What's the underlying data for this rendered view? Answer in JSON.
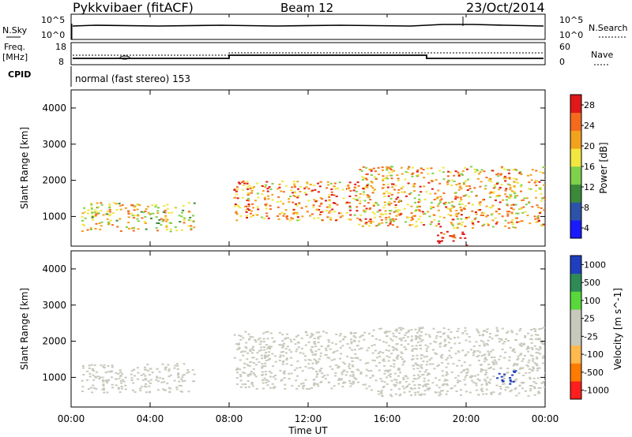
{
  "header": {
    "station": "Pykkvibaer (fitACF)",
    "beam": "Beam 12",
    "date": "23/Oct/2014"
  },
  "panels": {
    "nsky": {
      "label": "N.Sky",
      "right_label": "N.Search",
      "y_ticks_left": [
        "10^5",
        "10^0"
      ],
      "y_ticks_right": [
        "10^5",
        "10^0"
      ]
    },
    "freq": {
      "label_top": "Freq.",
      "label_unit": "[MHz]",
      "y_ticks_left": [
        "18",
        "8"
      ],
      "y_ticks_right": [
        "60",
        "0"
      ],
      "right_label": "Nave"
    },
    "cpid": {
      "label": "CPID",
      "text": "normal (fast stereo) 153"
    }
  },
  "colors": {
    "power_scale": [
      "#1a1aff",
      "#2d53a8",
      "#3a8a3a",
      "#7fd04a",
      "#f2e640",
      "#f2a21d",
      "#f56a1c",
      "#e01818"
    ],
    "velocity_scale": [
      "#ff1e1e",
      "#ff7a00",
      "#ffb84d",
      "#c8c8bc",
      "#c8c8bc",
      "#58d83a",
      "#2e8b57",
      "#1f3fbf"
    ]
  },
  "chart_data": [
    {
      "type": "heatmap",
      "title": "",
      "xlabel": "Time UT",
      "ylabel": "Slant Range [km]",
      "xlim": [
        0,
        24
      ],
      "ylim": [
        180,
        4500
      ],
      "x_ticks": [
        "00:00",
        "04:00",
        "08:00",
        "12:00",
        "16:00",
        "20:00",
        "00:00"
      ],
      "y_ticks": [
        "1000",
        "2000",
        "3000",
        "4000"
      ],
      "colorbar_label": "Power [dB]",
      "colorbar_ticks": [
        "28",
        "24",
        "20",
        "16",
        "12",
        "8",
        "4"
      ],
      "clim": [
        0,
        30
      ],
      "regions": [
        {
          "t0": 0.5,
          "t1": 6.2,
          "r0": 600,
          "r1": 1400,
          "value": 18
        },
        {
          "t0": 8.2,
          "t1": 14.5,
          "r0": 900,
          "r1": 2000,
          "value": 22
        },
        {
          "t0": 14.5,
          "t1": 24.0,
          "r0": 700,
          "r1": 2400,
          "value": 20
        },
        {
          "t0": 18.5,
          "t1": 20.0,
          "r0": 200,
          "r1": 600,
          "value": 28
        }
      ]
    },
    {
      "type": "heatmap",
      "title": "",
      "xlabel": "Time UT",
      "ylabel": "Slant Range [km]",
      "xlim": [
        0,
        24
      ],
      "ylim": [
        180,
        4500
      ],
      "x_ticks": [
        "00:00",
        "04:00",
        "08:00",
        "12:00",
        "16:00",
        "20:00",
        "00:00"
      ],
      "y_ticks": [
        "1000",
        "2000",
        "3000",
        "4000"
      ],
      "colorbar_label": "Velocity [m s^-1]",
      "colorbar_ticks": [
        "1000",
        "500",
        "100",
        "25",
        "-25",
        "-100",
        "-500",
        "-1000"
      ],
      "clim": [
        -1000,
        1000
      ],
      "regions": [
        {
          "t0": 0.5,
          "t1": 6.2,
          "r0": 600,
          "r1": 1400,
          "value": 0
        },
        {
          "t0": 8.2,
          "t1": 15.0,
          "r0": 700,
          "r1": 2300,
          "value": 0
        },
        {
          "t0": 15.0,
          "t1": 24.0,
          "r0": 500,
          "r1": 2400,
          "value": 50
        },
        {
          "t0": 21.5,
          "t1": 22.5,
          "r0": 800,
          "r1": 1200,
          "value": 900
        }
      ]
    }
  ]
}
